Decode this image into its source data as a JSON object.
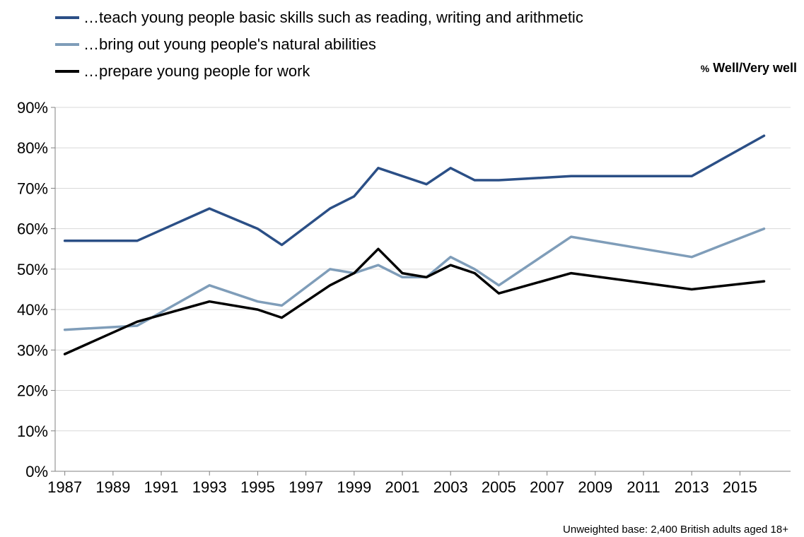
{
  "legend": [
    {
      "label": "…teach young people basic skills such as reading, writing and arithmetic",
      "color": "#2b4f86"
    },
    {
      "label": "…bring out young people's natural abilities",
      "color": "#7f9db9"
    },
    {
      "label": "…prepare young people for work",
      "color": "#000000"
    }
  ],
  "notes": {
    "measure_prefix": "%",
    "measure": "Well/Very well",
    "base": "Unweighted base:  2,400 British adults aged  18+"
  },
  "chart_data": {
    "type": "line",
    "title": "",
    "xlabel": "",
    "ylabel": "",
    "xlim": [
      1986.6,
      2017.1
    ],
    "ylim": [
      0,
      90
    ],
    "grid": true,
    "legend_position": "top-left",
    "x_ticks": [
      "1987",
      "1989",
      "1991",
      "1993",
      "1995",
      "1997",
      "1999",
      "2001",
      "2003",
      "2005",
      "2007",
      "2009",
      "2011",
      "2013",
      "2015"
    ],
    "y_ticks": [
      "0%",
      "10%",
      "20%",
      "30%",
      "40%",
      "50%",
      "60%",
      "70%",
      "80%",
      "90%"
    ],
    "series": [
      {
        "name": "…teach young people basic skills such as reading, writing and arithmetic",
        "color": "#2b4f86",
        "x": [
          1987,
          1990,
          1993,
          1995,
          1996,
          1998,
          1999,
          2000,
          2002,
          2003,
          2004,
          2005,
          2008,
          2013,
          2016
        ],
        "values": [
          57,
          57,
          65,
          60,
          56,
          65,
          68,
          75,
          71,
          75,
          72,
          72,
          73,
          73,
          83
        ]
      },
      {
        "name": "…bring out young people's natural abilities",
        "color": "#7f9db9",
        "x": [
          1987,
          1990,
          1993,
          1995,
          1996,
          1998,
          1999,
          2000,
          2001,
          2002,
          2003,
          2004,
          2005,
          2008,
          2013,
          2016
        ],
        "values": [
          35,
          36,
          46,
          42,
          41,
          50,
          49,
          51,
          48,
          48,
          53,
          50,
          46,
          58,
          53,
          60
        ]
      },
      {
        "name": "…prepare young people for work",
        "color": "#000000",
        "x": [
          1987,
          1990,
          1993,
          1995,
          1996,
          1998,
          1999,
          2000,
          2001,
          2002,
          2003,
          2004,
          2005,
          2008,
          2013,
          2016
        ],
        "values": [
          29,
          37,
          42,
          40,
          38,
          46,
          49,
          55,
          49,
          48,
          51,
          49,
          44,
          49,
          45,
          47
        ]
      }
    ]
  }
}
